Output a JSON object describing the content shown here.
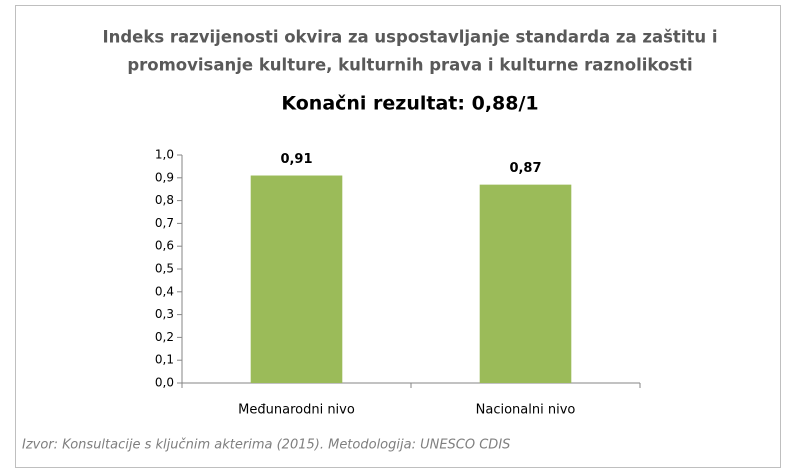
{
  "chart_data": {
    "type": "bar",
    "title": [
      "Indeks razvijenosti okvira za uspostavljanje standarda za zaštitu i",
      "promovisanje kulture, kulturnih prava i kulturne raznolikosti"
    ],
    "subtitle": "Konačni rezultat: 0,88/1",
    "categories": [
      "Međunarodni nivo",
      "Nacionalni nivo"
    ],
    "values": [
      0.91,
      0.87
    ],
    "value_labels": [
      "0,91",
      "0,87"
    ],
    "color": "#9bbb59",
    "ylim": [
      0,
      1
    ],
    "yticks": [
      {
        "value": 0,
        "label": "0,0"
      },
      {
        "value": 0.1,
        "label": "0,1"
      },
      {
        "value": 0.2,
        "label": "0,2"
      },
      {
        "value": 0.3,
        "label": "0,3"
      },
      {
        "value": 0.4,
        "label": "0,4"
      },
      {
        "value": 0.5,
        "label": "0,5"
      },
      {
        "value": 0.6,
        "label": "0,6"
      },
      {
        "value": 0.7,
        "label": "0,7"
      },
      {
        "value": 0.8,
        "label": "0,8"
      },
      {
        "value": 0.9,
        "label": "0,9"
      },
      {
        "value": 1,
        "label": "1,0"
      }
    ],
    "grid": false,
    "source": "Izvor: Konsultacije s ključnim akterima (2015). Metodologija: UNESCO CDIS"
  }
}
